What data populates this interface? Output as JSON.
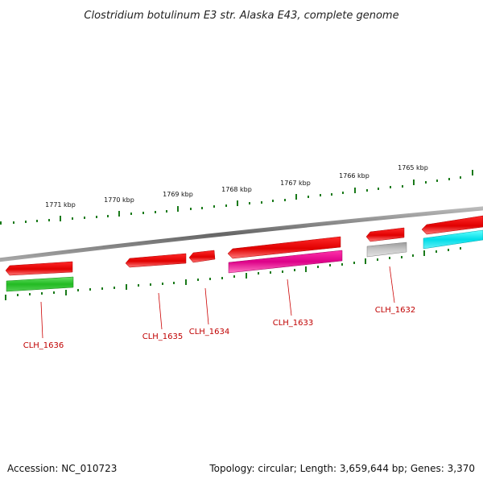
{
  "title": "Clostridium botulinum E3 str. Alaska E43, complete genome",
  "footer": {
    "accession": "Accession: NC_010723",
    "topology": "Topology: circular; Length: 3,659,644 bp; Genes: 3,370"
  },
  "scale": {
    "ticks": [
      "1771 kbp",
      "1770 kbp",
      "1769 kbp",
      "1768 kbp",
      "1767 kbp",
      "1766 kbp",
      "1765 kbp"
    ]
  },
  "genes": [
    {
      "label": "CLH_1636",
      "strand": "reverse",
      "cds_color": "#ff0000",
      "track2_color": "#33cc33"
    },
    {
      "label": "CLH_1635",
      "strand": "reverse",
      "cds_color": "#ff0000",
      "track2_color": null
    },
    {
      "label": "CLH_1634",
      "strand": "reverse",
      "cds_color": "#ff0000",
      "track2_color": null
    },
    {
      "label": "CLH_1633",
      "strand": "reverse",
      "cds_color": "#ff0000",
      "track2_color": "#ee1199"
    },
    {
      "label": "CLH_1632",
      "strand": "reverse",
      "cds_color": "#ff0000",
      "track2_color": "#b0b0b0"
    },
    {
      "label": "",
      "strand": "reverse",
      "cds_color": "#ff0000",
      "track2_color": "#00e5ee"
    }
  ]
}
